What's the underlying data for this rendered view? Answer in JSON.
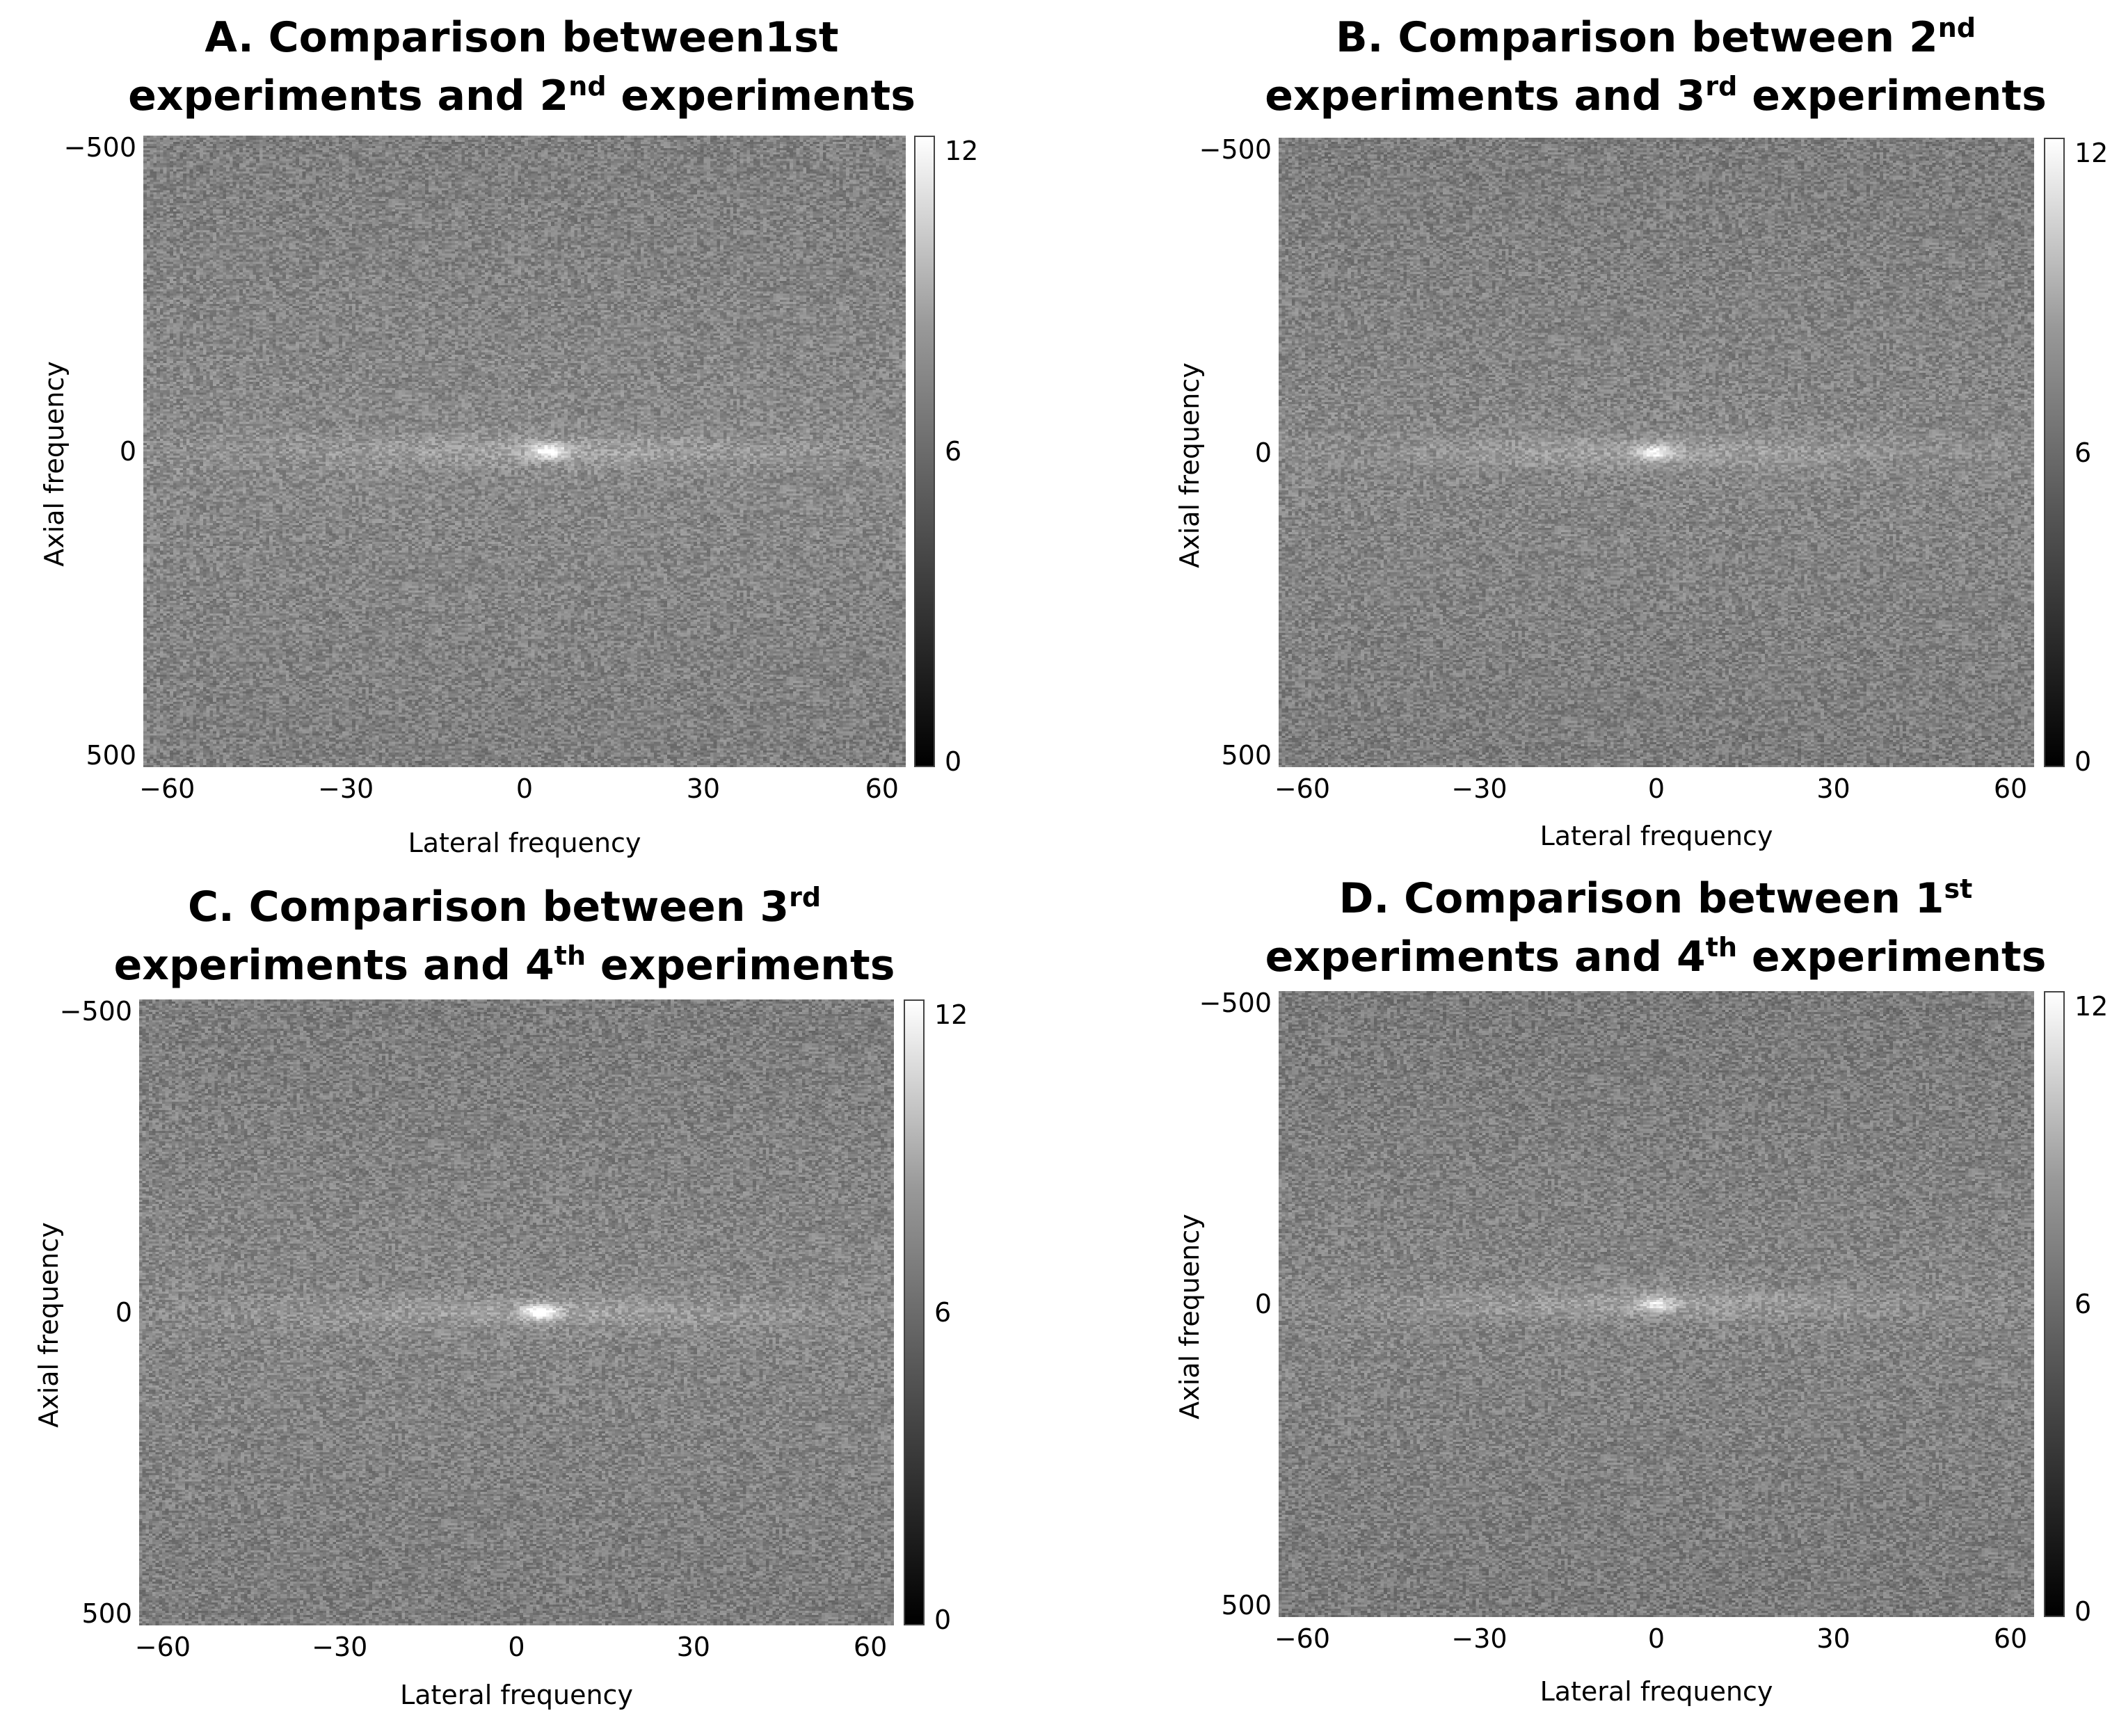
{
  "chart_data": [
    {
      "type": "heatmap",
      "id": "A",
      "title_parts": [
        {
          "text": "A. Comparison between1st"
        },
        {
          "text": "experiments and 2"
        },
        {
          "sup": "nd"
        },
        {
          "text": " experiments"
        }
      ],
      "title_line_break_after": 0,
      "xlabel": "Lateral frequency",
      "ylabel": "Axial frequency",
      "x_ticks": [
        "−60",
        "−30",
        "0",
        "30",
        "60"
      ],
      "x_tick_values": [
        -60,
        -30,
        0,
        30,
        60
      ],
      "y_ticks": [
        "−500",
        "0",
        "500"
      ],
      "y_tick_values": [
        -500,
        0,
        500
      ],
      "xlim": [
        -64,
        64
      ],
      "ylim": [
        -520,
        520
      ],
      "colorbar_ticks": [
        "12",
        "6",
        "0"
      ],
      "colorbar_values": [
        12,
        6,
        0
      ],
      "colorbar_range": [
        0,
        12
      ],
      "center_peak_x": 4,
      "background_level": 6.5,
      "peak_level": 11.5
    },
    {
      "type": "heatmap",
      "id": "B",
      "title_parts": [
        {
          "text": "B. Comparison between 2"
        },
        {
          "sup": "nd"
        },
        {
          "text": "experiments and 3"
        },
        {
          "sup": "rd"
        },
        {
          "text": " experiments"
        }
      ],
      "title_line_break_after": 1,
      "xlabel": "Lateral frequency",
      "ylabel": "Axial frequency",
      "x_ticks": [
        "−60",
        "−30",
        "0",
        "30",
        "60"
      ],
      "x_tick_values": [
        -60,
        -30,
        0,
        30,
        60
      ],
      "y_ticks": [
        "−500",
        "0",
        "500"
      ],
      "y_tick_values": [
        -500,
        0,
        500
      ],
      "xlim": [
        -64,
        64
      ],
      "ylim": [
        -520,
        520
      ],
      "colorbar_ticks": [
        "12",
        "6",
        "0"
      ],
      "colorbar_values": [
        12,
        6,
        0
      ],
      "colorbar_range": [
        0,
        12
      ],
      "center_peak_x": 0,
      "background_level": 6.4,
      "peak_level": 11
    },
    {
      "type": "heatmap",
      "id": "C",
      "title_parts": [
        {
          "text": "C. Comparison between 3"
        },
        {
          "sup": "rd"
        },
        {
          "text": "experiments and 4"
        },
        {
          "sup": "th"
        },
        {
          "text": " experiments"
        }
      ],
      "title_line_break_after": 1,
      "xlabel": "Lateral frequency",
      "ylabel": "Axial frequency",
      "x_ticks": [
        "−60",
        "−30",
        "0",
        "30",
        "60"
      ],
      "x_tick_values": [
        -60,
        -30,
        0,
        30,
        60
      ],
      "y_ticks": [
        "−500",
        "0",
        "500"
      ],
      "y_tick_values": [
        -500,
        0,
        500
      ],
      "xlim": [
        -64,
        64
      ],
      "ylim": [
        -520,
        520
      ],
      "colorbar_ticks": [
        "12",
        "6",
        "0"
      ],
      "colorbar_values": [
        12,
        6,
        0
      ],
      "colorbar_range": [
        0,
        12
      ],
      "center_peak_x": 4,
      "background_level": 6.4,
      "peak_level": 12
    },
    {
      "type": "heatmap",
      "id": "D",
      "title_parts": [
        {
          "text": "D. Comparison between 1"
        },
        {
          "sup": "st"
        },
        {
          "text": "experiments and 4"
        },
        {
          "sup": "th"
        },
        {
          "text": " experiments"
        }
      ],
      "title_line_break_after": 1,
      "xlabel": "Lateral frequency",
      "ylabel": "Axial frequency",
      "x_ticks": [
        "−60",
        "−30",
        "0",
        "30",
        "60"
      ],
      "x_tick_values": [
        -60,
        -30,
        0,
        30,
        60
      ],
      "y_ticks": [
        "−500",
        "0",
        "500"
      ],
      "y_tick_values": [
        -500,
        0,
        500
      ],
      "xlim": [
        -64,
        64
      ],
      "ylim": [
        -520,
        520
      ],
      "colorbar_ticks": [
        "12",
        "6",
        "0"
      ],
      "colorbar_values": [
        12,
        6,
        0
      ],
      "colorbar_range": [
        0,
        12
      ],
      "center_peak_x": 0,
      "background_level": 6.3,
      "peak_level": 10
    }
  ]
}
